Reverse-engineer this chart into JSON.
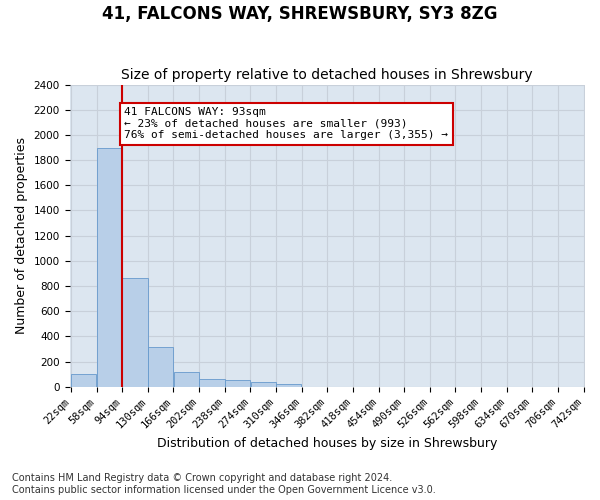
{
  "title": "41, FALCONS WAY, SHREWSBURY, SY3 8ZG",
  "subtitle": "Size of property relative to detached houses in Shrewsbury",
  "xlabel": "Distribution of detached houses by size in Shrewsbury",
  "ylabel": "Number of detached properties",
  "footer_line1": "Contains HM Land Registry data © Crown copyright and database right 2024.",
  "footer_line2": "Contains public sector information licensed under the Open Government Licence v3.0.",
  "bin_left_edges": [
    22,
    58,
    94,
    130,
    166,
    202,
    238,
    274,
    310,
    346,
    382,
    418,
    454,
    490,
    526,
    562,
    598,
    634,
    670,
    706
  ],
  "bin_width": 36,
  "bin_labels": [
    "22sqm",
    "58sqm",
    "94sqm",
    "130sqm",
    "166sqm",
    "202sqm",
    "238sqm",
    "274sqm",
    "310sqm",
    "346sqm",
    "382sqm",
    "418sqm",
    "454sqm",
    "490sqm",
    "526sqm",
    "562sqm",
    "598sqm",
    "634sqm",
    "670sqm",
    "706sqm",
    "742sqm"
  ],
  "bar_heights": [
    100,
    1900,
    860,
    315,
    115,
    58,
    50,
    35,
    20,
    0,
    0,
    0,
    0,
    0,
    0,
    0,
    0,
    0,
    0,
    0
  ],
  "bar_color": "#b8cfe8",
  "bar_edge_color": "#6699cc",
  "property_size": 93,
  "property_line_color": "#cc0000",
  "annotation_line1": "41 FALCONS WAY: 93sqm",
  "annotation_line2": "← 23% of detached houses are smaller (993)",
  "annotation_line3": "76% of semi-detached houses are larger (3,355) →",
  "annotation_box_edgecolor": "#cc0000",
  "ylim": [
    0,
    2400
  ],
  "yticks": [
    0,
    200,
    400,
    600,
    800,
    1000,
    1200,
    1400,
    1600,
    1800,
    2000,
    2200,
    2400
  ],
  "grid_color": "#c8d0da",
  "bg_color": "#dce6f0",
  "fig_bg_color": "#ffffff",
  "title_fontsize": 12,
  "subtitle_fontsize": 10,
  "axis_label_fontsize": 9,
  "tick_fontsize": 7.5,
  "annotation_fontsize": 8,
  "footer_fontsize": 7
}
